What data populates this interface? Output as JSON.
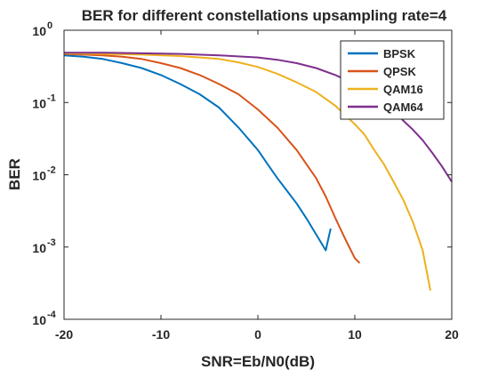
{
  "chart_data": {
    "type": "line",
    "title": "BER for different constellations upsampling rate=4",
    "xlabel": "SNR=Eb/N0(dB)",
    "ylabel": "BER",
    "xlim": [
      -20,
      20
    ],
    "ylim": [
      0.0001,
      1
    ],
    "yscale": "log",
    "grid": false,
    "legend_position": "top-right",
    "x_ticks": [
      "-20",
      "-10",
      "0",
      "10",
      "20"
    ],
    "y_ticks": [
      {
        "base": "10",
        "exp": "-4"
      },
      {
        "base": "10",
        "exp": "-3"
      },
      {
        "base": "10",
        "exp": "-2"
      },
      {
        "base": "10",
        "exp": "-1"
      },
      {
        "base": "10",
        "exp": "0"
      }
    ],
    "series": [
      {
        "name": "BPSK",
        "color": "#0072BD",
        "x": [
          -20,
          -18,
          -16,
          -14,
          -12,
          -10,
          -8,
          -6,
          -4,
          -2,
          0,
          1,
          2,
          3,
          4,
          5,
          6,
          7,
          7.5
        ],
        "values": [
          0.45,
          0.43,
          0.4,
          0.35,
          0.3,
          0.24,
          0.18,
          0.13,
          0.085,
          0.045,
          0.022,
          0.014,
          0.009,
          0.006,
          0.004,
          0.0025,
          0.0015,
          0.0009,
          0.0018
        ]
      },
      {
        "name": "QPSK",
        "color": "#D95319",
        "x": [
          -20,
          -18,
          -16,
          -14,
          -12,
          -10,
          -8,
          -6,
          -4,
          -2,
          0,
          2,
          4,
          6,
          7,
          8,
          9,
          10,
          10.5
        ],
        "values": [
          0.47,
          0.46,
          0.45,
          0.43,
          0.4,
          0.35,
          0.3,
          0.24,
          0.18,
          0.13,
          0.08,
          0.045,
          0.022,
          0.009,
          0.005,
          0.0025,
          0.0013,
          0.0007,
          0.0006
        ]
      },
      {
        "name": "QAM16",
        "color": "#EDB120",
        "x": [
          -20,
          -16,
          -12,
          -8,
          -4,
          -2,
          0,
          2,
          4,
          6,
          8,
          10,
          11,
          12,
          13,
          14,
          15,
          16,
          17,
          17.8
        ],
        "values": [
          0.48,
          0.47,
          0.46,
          0.44,
          0.4,
          0.36,
          0.31,
          0.25,
          0.19,
          0.14,
          0.09,
          0.05,
          0.036,
          0.022,
          0.014,
          0.008,
          0.0045,
          0.0022,
          0.0009,
          0.00025
        ]
      },
      {
        "name": "QAM64",
        "color": "#7E2F8E",
        "x": [
          -20,
          -16,
          -12,
          -8,
          -4,
          0,
          2,
          4,
          6,
          8,
          10,
          12,
          14,
          16,
          17,
          18,
          19,
          20
        ],
        "values": [
          0.49,
          0.49,
          0.48,
          0.47,
          0.45,
          0.42,
          0.39,
          0.35,
          0.3,
          0.24,
          0.18,
          0.12,
          0.075,
          0.042,
          0.03,
          0.02,
          0.013,
          0.008
        ]
      }
    ]
  }
}
